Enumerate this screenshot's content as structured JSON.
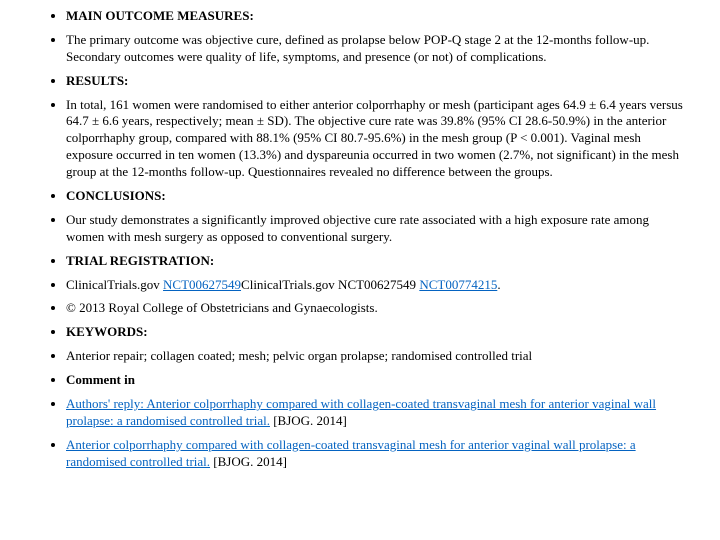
{
  "items": [
    {
      "type": "heading",
      "text": "MAIN OUTCOME MEASURES:"
    },
    {
      "type": "text",
      "text": "The primary outcome was objective cure, defined as prolapse below POP-Q stage 2 at the 12-months follow-up. Secondary outcomes were quality of life, symptoms, and presence (or not) of complications."
    },
    {
      "type": "heading",
      "text": "RESULTS:"
    },
    {
      "type": "text",
      "text": "In total, 161 women were randomised to either anterior colporrhaphy or mesh (participant ages 64.9 ± 6.4 years versus 64.7 ± 6.6 years, respectively; mean ± SD). The objective cure rate was 39.8% (95% CI 28.6-50.9%) in the anterior colporrhaphy group, compared with 88.1% (95% CI 80.7-95.6%) in the mesh group (P < 0.001). Vaginal mesh exposure occurred in ten women (13.3%) and dyspareunia occurred in two women (2.7%, not significant) in the mesh group at the 12-months follow-up. Questionnaires revealed no difference between the groups."
    },
    {
      "type": "heading",
      "text": "CONCLUSIONS:"
    },
    {
      "type": "text",
      "text": "Our study demonstrates a significantly improved objective cure rate associated with a high exposure rate among women with mesh surgery as opposed to conventional surgery."
    },
    {
      "type": "heading",
      "text": "TRIAL REGISTRATION:"
    },
    {
      "type": "mixed",
      "parts": [
        {
          "text": "ClinicalTrials.gov ",
          "link": false
        },
        {
          "text": "NCT00627549",
          "link": true
        },
        {
          "text": "ClinicalTrials.gov NCT00627549 ",
          "link": false
        },
        {
          "text": "NCT00774215",
          "link": true
        },
        {
          "text": ".",
          "link": false
        }
      ]
    },
    {
      "type": "text",
      "text": "© 2013 Royal College of Obstetricians and Gynaecologists."
    },
    {
      "type": "heading",
      "text": "KEYWORDS:"
    },
    {
      "type": "text",
      "text": "Anterior repair; collagen coated; mesh; pelvic organ prolapse; randomised controlled trial"
    },
    {
      "type": "heading",
      "text": "Comment in"
    },
    {
      "type": "mixed",
      "parts": [
        {
          "text": "Authors' reply: Anterior colporrhaphy compared with collagen-coated transvaginal mesh for anterior vaginal wall prolapse: a randomised controlled trial.",
          "link": true
        },
        {
          "text": " [BJOG. 2014]",
          "link": false
        }
      ]
    },
    {
      "type": "mixed",
      "parts": [
        {
          "text": "Anterior colporrhaphy compared with collagen-coated transvaginal mesh for anterior vaginal wall prolapse: a randomised controlled trial.",
          "link": true
        },
        {
          "text": " [BJOG. 2014]",
          "link": false
        }
      ]
    }
  ],
  "colors": {
    "text": "#000000",
    "link": "#0563c1",
    "background": "#ffffff"
  }
}
